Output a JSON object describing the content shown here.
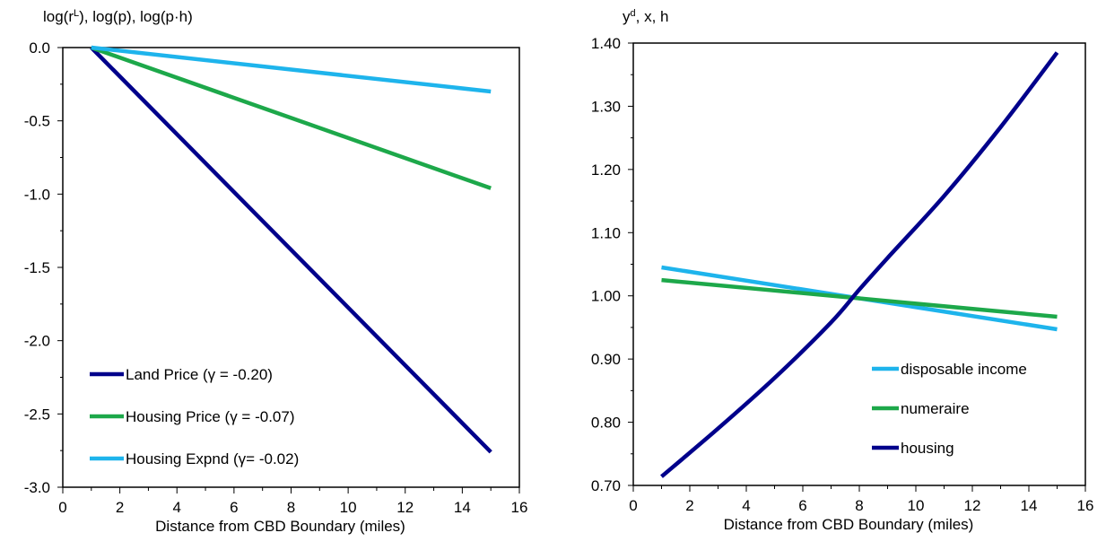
{
  "chart_data": [
    {
      "type": "line",
      "ylabel": "log(r^L), log(p), log(p·h)",
      "xlabel": "Distance from CBD Boundary (miles)",
      "xlim": [
        0,
        16
      ],
      "ylim": [
        -3.0,
        0.0
      ],
      "xticks": [
        "0",
        "2",
        "4",
        "6",
        "8",
        "10",
        "12",
        "14",
        "16"
      ],
      "yticks": [
        "0.0",
        "-0.5",
        "-1.0",
        "-1.5",
        "-2.0",
        "-2.5",
        "-3.0"
      ],
      "grid": false,
      "legend_position": "bottom-left",
      "series": [
        {
          "name": "Land Price (γ = -0.20)",
          "color": "#00008B",
          "x": [
            1,
            15
          ],
          "y": [
            0.0,
            -2.76
          ]
        },
        {
          "name": "Housing Price (γ = -0.07)",
          "color": "#1DA84A",
          "x": [
            1,
            15
          ],
          "y": [
            0.0,
            -0.96
          ]
        },
        {
          "name": "Housing Expnd (γ= -0.02)",
          "color": "#1EB4EC",
          "x": [
            1,
            15
          ],
          "y": [
            0.0,
            -0.3
          ]
        }
      ]
    },
    {
      "type": "line",
      "ylabel": "y^d, x, h",
      "xlabel": "Distance from CBD Boundary (miles)",
      "xlim": [
        0,
        16
      ],
      "ylim": [
        0.7,
        1.4
      ],
      "xticks": [
        "0",
        "2",
        "4",
        "6",
        "8",
        "10",
        "12",
        "14",
        "16"
      ],
      "yticks": [
        "1.40",
        "1.30",
        "1.20",
        "1.10",
        "1.00",
        "0.90",
        "0.80",
        "0.70"
      ],
      "grid": false,
      "legend_position": "bottom-right",
      "series": [
        {
          "name": "disposable income",
          "color": "#1EB4EC",
          "x": [
            1,
            15
          ],
          "y": [
            1.045,
            0.947
          ]
        },
        {
          "name": "numeraire",
          "color": "#1DA84A",
          "x": [
            1,
            15
          ],
          "y": [
            1.025,
            0.967
          ]
        },
        {
          "name": "housing",
          "color": "#00008B",
          "x": [
            1,
            3,
            5,
            7,
            8,
            9,
            11,
            13,
            15
          ],
          "y": [
            0.714,
            0.79,
            0.87,
            0.958,
            1.01,
            1.06,
            1.158,
            1.267,
            1.385
          ]
        }
      ]
    }
  ]
}
